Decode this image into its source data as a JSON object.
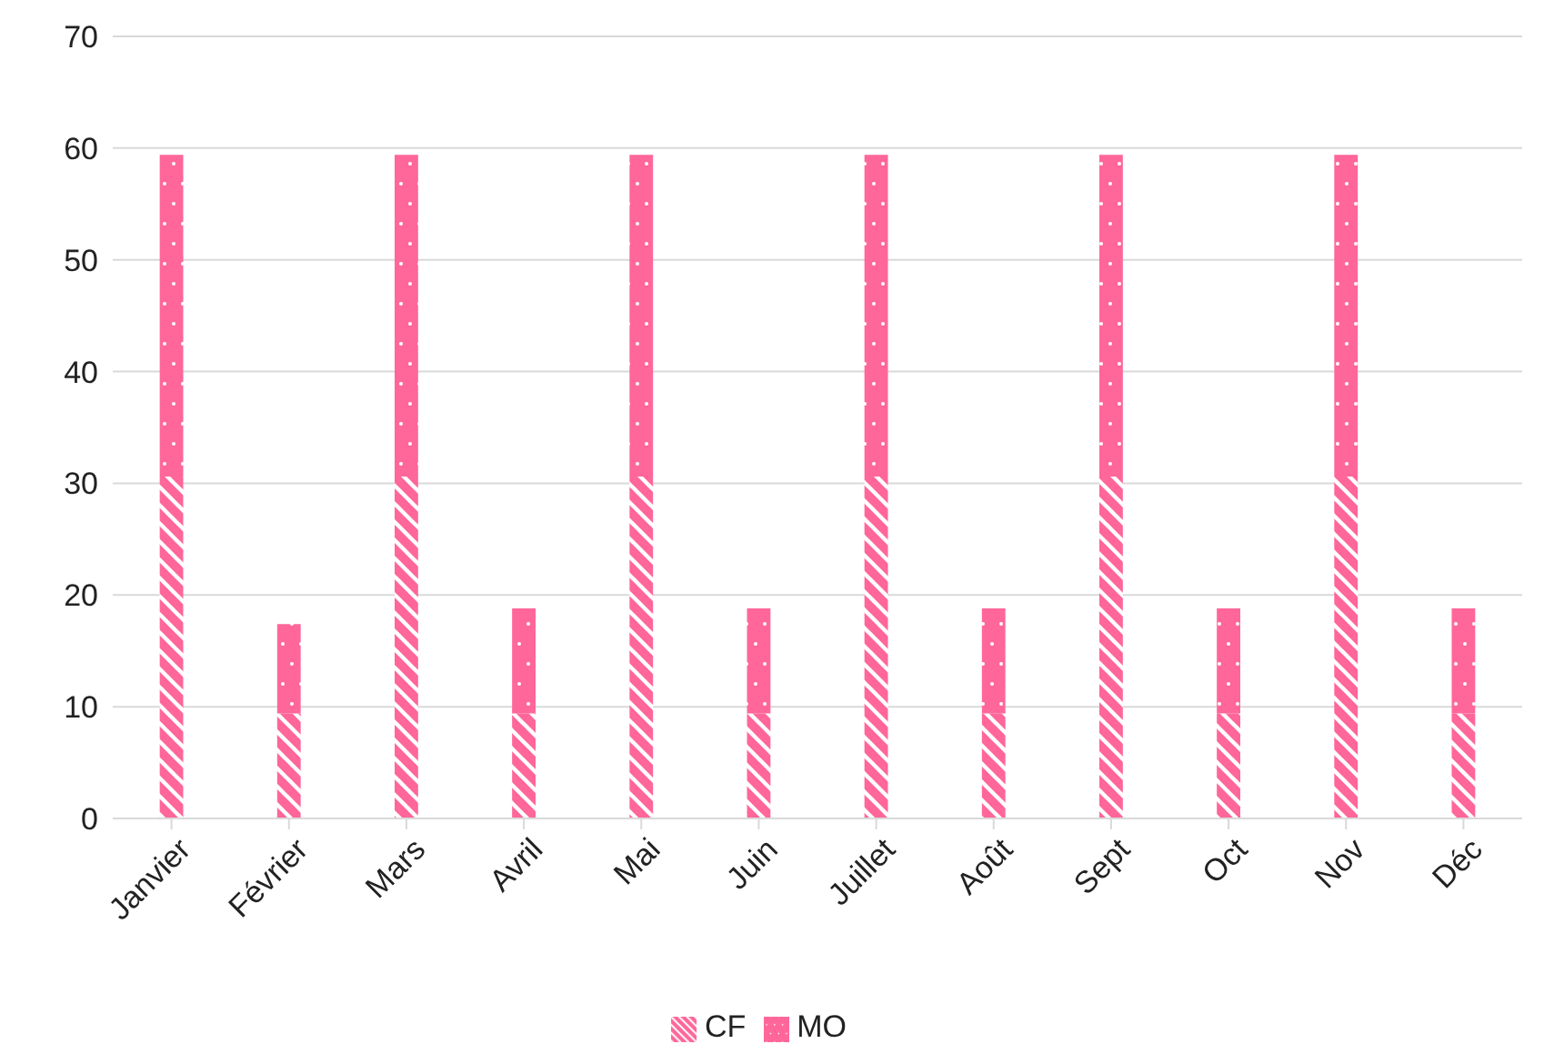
{
  "chart_data": {
    "type": "bar",
    "stacked": true,
    "categories": [
      "Janvier",
      "Février",
      "Mars",
      "Avril",
      "Mai",
      "Juin",
      "Juillet",
      "Août",
      "Sept",
      "Oct",
      "Nov",
      "Déc"
    ],
    "series": [
      {
        "name": "CF",
        "color": "#ff6699",
        "values": [
          30.6,
          9.4,
          30.6,
          9.4,
          30.6,
          9.4,
          30.6,
          9.4,
          30.6,
          9.4,
          30.6,
          9.4
        ]
      },
      {
        "name": "MO",
        "color": "#ff6699",
        "values": [
          28.8,
          8,
          28.8,
          9.4,
          28.8,
          9.4,
          28.8,
          9.4,
          28.8,
          9.4,
          28.8,
          9.4
        ]
      }
    ],
    "ylim": [
      0,
      70
    ],
    "yticks": [
      0,
      10,
      20,
      30,
      40,
      50,
      60,
      70
    ],
    "grid": "y",
    "legend": "bottom"
  }
}
